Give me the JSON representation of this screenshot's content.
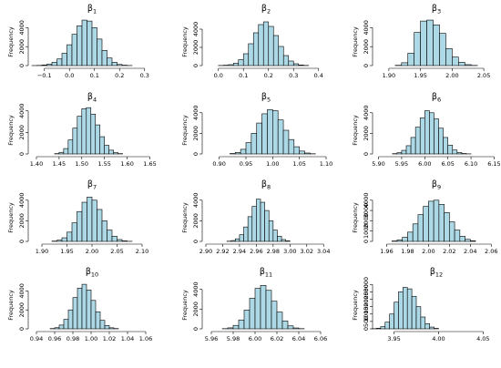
{
  "chart_data": [
    {
      "type": "bar",
      "title_base": "β",
      "title_sub": "1",
      "ylabel": "Frequency",
      "xlim": [
        -0.15,
        0.33
      ],
      "xticks": [
        -0.1,
        0.0,
        0.1,
        0.2,
        0.3
      ],
      "xtick_labels": [
        "−0.1",
        "0.0",
        "0.1",
        "0.2",
        "0.3"
      ],
      "yticks": [
        0,
        2000,
        4000
      ],
      "ylim": [
        0,
        5000
      ],
      "bin_start": -0.15,
      "bin_width": 0.02,
      "values": [
        5,
        20,
        60,
        150,
        350,
        700,
        1300,
        2200,
        3300,
        4200,
        4800,
        4700,
        4000,
        2800,
        1600,
        800,
        350,
        120,
        40,
        10
      ]
    },
    {
      "type": "bar",
      "title_base": "β",
      "title_sub": "2",
      "ylabel": "Frequency",
      "xlim": [
        -0.05,
        0.43
      ],
      "xticks": [
        0.0,
        0.1,
        0.2,
        0.3,
        0.4
      ],
      "xtick_labels": [
        "0.0",
        "0.1",
        "0.2",
        "0.3",
        "0.4"
      ],
      "yticks": [
        0,
        2000,
        4000
      ],
      "ylim": [
        0,
        5200
      ],
      "bin_start": 0.0,
      "bin_width": 0.02,
      "values": [
        15,
        40,
        100,
        260,
        650,
        1300,
        2400,
        3600,
        4500,
        4800,
        4300,
        3300,
        2100,
        1100,
        500,
        200,
        70,
        20
      ]
    },
    {
      "type": "bar",
      "title_base": "β",
      "title_sub": "3",
      "ylabel": "Frequency",
      "xlim": [
        1.88,
        2.07
      ],
      "xticks": [
        1.9,
        1.95,
        2.0,
        2.05
      ],
      "xtick_labels": [
        "1.90",
        "1.95",
        "2.00",
        "2.05"
      ],
      "yticks": [
        0,
        2000,
        4000
      ],
      "ylim": [
        0,
        5000
      ],
      "bin_start": 1.91,
      "bin_width": 0.01,
      "values": [
        30,
        300,
        1300,
        3500,
        4700,
        4800,
        4300,
        3400,
        1800,
        900,
        350,
        100,
        20
      ]
    },
    {
      "type": "bar",
      "title_base": "β",
      "title_sub": "4",
      "ylabel": "Frequency",
      "xlim": [
        1.39,
        1.655
      ],
      "xticks": [
        1.4,
        1.45,
        1.5,
        1.55,
        1.6,
        1.65
      ],
      "xtick_labels": [
        "1.40",
        "1.45",
        "1.50",
        "1.55",
        "1.60",
        "1.65"
      ],
      "yticks": [
        0,
        2000,
        4000
      ],
      "ylim": [
        0,
        4400
      ],
      "bin_start": 1.44,
      "bin_width": 0.01,
      "values": [
        30,
        150,
        500,
        1300,
        2400,
        3500,
        4200,
        4300,
        3700,
        2700,
        1600,
        800,
        350,
        120,
        30
      ]
    },
    {
      "type": "bar",
      "title_base": "β",
      "title_sub": "5",
      "ylabel": "Frequency",
      "xlim": [
        0.875,
        1.1
      ],
      "xticks": [
        0.9,
        0.95,
        1.0,
        1.05,
        1.1
      ],
      "xtick_labels": [
        "0.90",
        "0.95",
        "1.00",
        "1.05",
        "1.10"
      ],
      "yticks": [
        0,
        2000,
        4000
      ],
      "ylim": [
        0,
        4600
      ],
      "bin_start": 0.92,
      "bin_width": 0.01,
      "values": [
        40,
        150,
        450,
        1100,
        2000,
        3000,
        3900,
        4300,
        4200,
        3300,
        2300,
        1400,
        700,
        280,
        90,
        20
      ]
    },
    {
      "type": "bar",
      "title_base": "β",
      "title_sub": "6",
      "ylabel": "Frequency",
      "xlim": [
        5.895,
        6.155
      ],
      "xticks": [
        5.9,
        5.95,
        6.0,
        6.05,
        6.1,
        6.15
      ],
      "xtick_labels": [
        "5.90",
        "5.95",
        "6.00",
        "6.05",
        "6.10",
        "6.15"
      ],
      "yticks": [
        0,
        2000,
        4000
      ],
      "ylim": [
        0,
        4600
      ],
      "bin_start": 5.93,
      "bin_width": 0.01,
      "values": [
        30,
        120,
        350,
        800,
        1600,
        2600,
        3500,
        4200,
        4000,
        3400,
        2500,
        1600,
        850,
        380,
        140,
        40,
        10
      ]
    },
    {
      "type": "bar",
      "title_base": "β",
      "title_sub": "7",
      "ylabel": "Frequency",
      "xlim": [
        1.88,
        2.12
      ],
      "xticks": [
        1.9,
        1.95,
        2.0,
        2.05,
        2.1
      ],
      "xtick_labels": [
        "1.90",
        "1.95",
        "2.00",
        "2.05",
        "2.10"
      ],
      "yticks": [
        0,
        2000,
        4000
      ],
      "ylim": [
        0,
        4600
      ],
      "bin_start": 1.92,
      "bin_width": 0.01,
      "values": [
        30,
        120,
        350,
        900,
        1800,
        2900,
        3800,
        4300,
        4000,
        3100,
        2000,
        1100,
        500,
        180,
        50,
        10
      ]
    },
    {
      "type": "bar",
      "title_base": "β",
      "title_sub": "8",
      "ylabel": "Frequency",
      "xlim": [
        2.9,
        3.043
      ],
      "xticks": [
        2.9,
        2.92,
        2.94,
        2.96,
        2.98,
        3.0,
        3.02,
        3.04
      ],
      "xtick_labels": [
        "2.90",
        "2.92",
        "2.94",
        "2.96",
        "2.98",
        "3.00",
        "3.02",
        "3.04"
      ],
      "yticks": [
        0,
        2000,
        4000
      ],
      "ylim": [
        0,
        4600
      ],
      "bin_start": 2.925,
      "bin_width": 0.005,
      "values": [
        20,
        80,
        250,
        650,
        1400,
        2400,
        3400,
        4100,
        3800,
        3000,
        2000,
        1100,
        500,
        180,
        50
      ]
    },
    {
      "type": "bar",
      "title_base": "β",
      "title_sub": "9",
      "ylabel": "Frequency",
      "xlim": [
        1.95,
        2.065
      ],
      "xticks": [
        1.96,
        1.98,
        2.0,
        2.02,
        2.04,
        2.06
      ],
      "xtick_labels": [
        "1.96",
        "1.98",
        "2.00",
        "2.02",
        "2.04",
        "2.06"
      ],
      "yticks": [
        0,
        1000,
        2000,
        3000,
        4000
      ],
      "ylim": [
        0,
        4600
      ],
      "bin_start": 1.965,
      "bin_width": 0.005,
      "values": [
        40,
        150,
        400,
        900,
        1700,
        2600,
        3400,
        3900,
        4000,
        3600,
        2800,
        1900,
        1100,
        500,
        200,
        60
      ]
    },
    {
      "type": "bar",
      "title_base": "β",
      "title_sub": "10",
      "ylabel": "Frequency",
      "xlim": [
        0.935,
        1.067
      ],
      "xticks": [
        0.94,
        0.96,
        0.98,
        1.0,
        1.02,
        1.04,
        1.06
      ],
      "xtick_labels": [
        "0.94",
        "0.96",
        "0.98",
        "1.00",
        "1.02",
        "1.04",
        "1.06"
      ],
      "yticks": [
        0,
        2000,
        4000
      ],
      "ylim": [
        0,
        5000
      ],
      "bin_start": 0.955,
      "bin_width": 0.005,
      "values": [
        30,
        120,
        400,
        1000,
        2000,
        3300,
        4300,
        4700,
        4100,
        3000,
        1800,
        900,
        350,
        110,
        30
      ]
    },
    {
      "type": "bar",
      "title_base": "β",
      "title_sub": "11",
      "ylabel": "Frequency",
      "xlim": [
        5.955,
        6.065
      ],
      "xticks": [
        5.96,
        5.98,
        6.0,
        6.02,
        6.04,
        6.06
      ],
      "xtick_labels": [
        "5.96",
        "5.98",
        "6.00",
        "6.02",
        "6.04",
        "6.06"
      ],
      "yticks": [
        0,
        2000,
        4000
      ],
      "ylim": [
        0,
        4800
      ],
      "bin_start": 5.97,
      "bin_width": 0.005,
      "values": [
        20,
        100,
        350,
        900,
        1900,
        3100,
        4100,
        4400,
        3900,
        2800,
        1700,
        800,
        300,
        90,
        20
      ]
    },
    {
      "type": "bar",
      "title_base": "β",
      "title_sub": "12",
      "ylabel": "Frequency",
      "xlim": [
        3.93,
        4.065
      ],
      "xticks": [
        3.95,
        4.0,
        4.05
      ],
      "xtick_labels": [
        "3.95",
        "4.00",
        "4.05"
      ],
      "yticks": [
        0,
        500,
        1000,
        1500,
        2000,
        2500,
        3000
      ],
      "ylim": [
        0,
        3200
      ],
      "bin_start": 3.925,
      "bin_width": 0.005,
      "values": [
        10,
        40,
        150,
        450,
        1000,
        1800,
        2500,
        2800,
        2700,
        2200,
        1500,
        800,
        350,
        120,
        30
      ]
    }
  ]
}
